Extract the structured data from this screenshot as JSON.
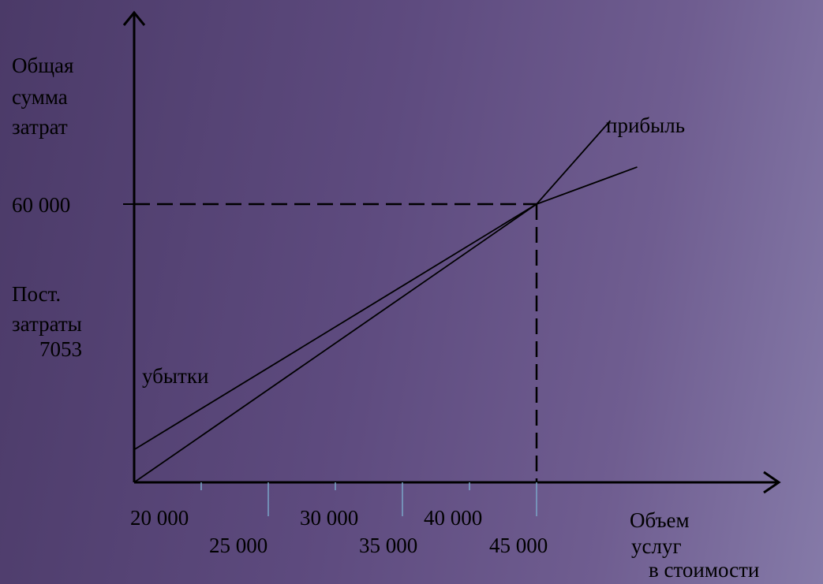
{
  "chart_data": {
    "type": "line",
    "ylabel": [
      "Общая",
      "сумма",
      "затрат"
    ],
    "xlabel": [
      "Объем",
      "услуг",
      "в стоимости"
    ],
    "y_tick": "60 000",
    "y_tick_value": 60000,
    "fixed_costs_label": [
      "Пост.",
      "затраты",
      "7053"
    ],
    "fixed_costs_value": 7053,
    "x_ticks_upper": [
      "20 000",
      "30 000",
      "40 000"
    ],
    "x_ticks_lower": [
      "25 000",
      "35 000",
      "45 000"
    ],
    "x_tick_values": [
      20000,
      25000,
      30000,
      35000,
      40000,
      45000
    ],
    "break_even": {
      "x": 45000,
      "y": 60000
    },
    "series": [
      {
        "points": [
          [
            15000,
            0
          ],
          [
            45000,
            60000
          ],
          [
            50500,
            78000
          ]
        ]
      },
      {
        "points": [
          [
            15000,
            7053
          ],
          [
            45000,
            60000
          ],
          [
            52500,
            68000
          ]
        ]
      }
    ],
    "annotations": {
      "profit": "прибыль",
      "loss": "убытки"
    }
  },
  "colors": {
    "axis": "#000000",
    "tick_marks": "#7aa6c8"
  }
}
